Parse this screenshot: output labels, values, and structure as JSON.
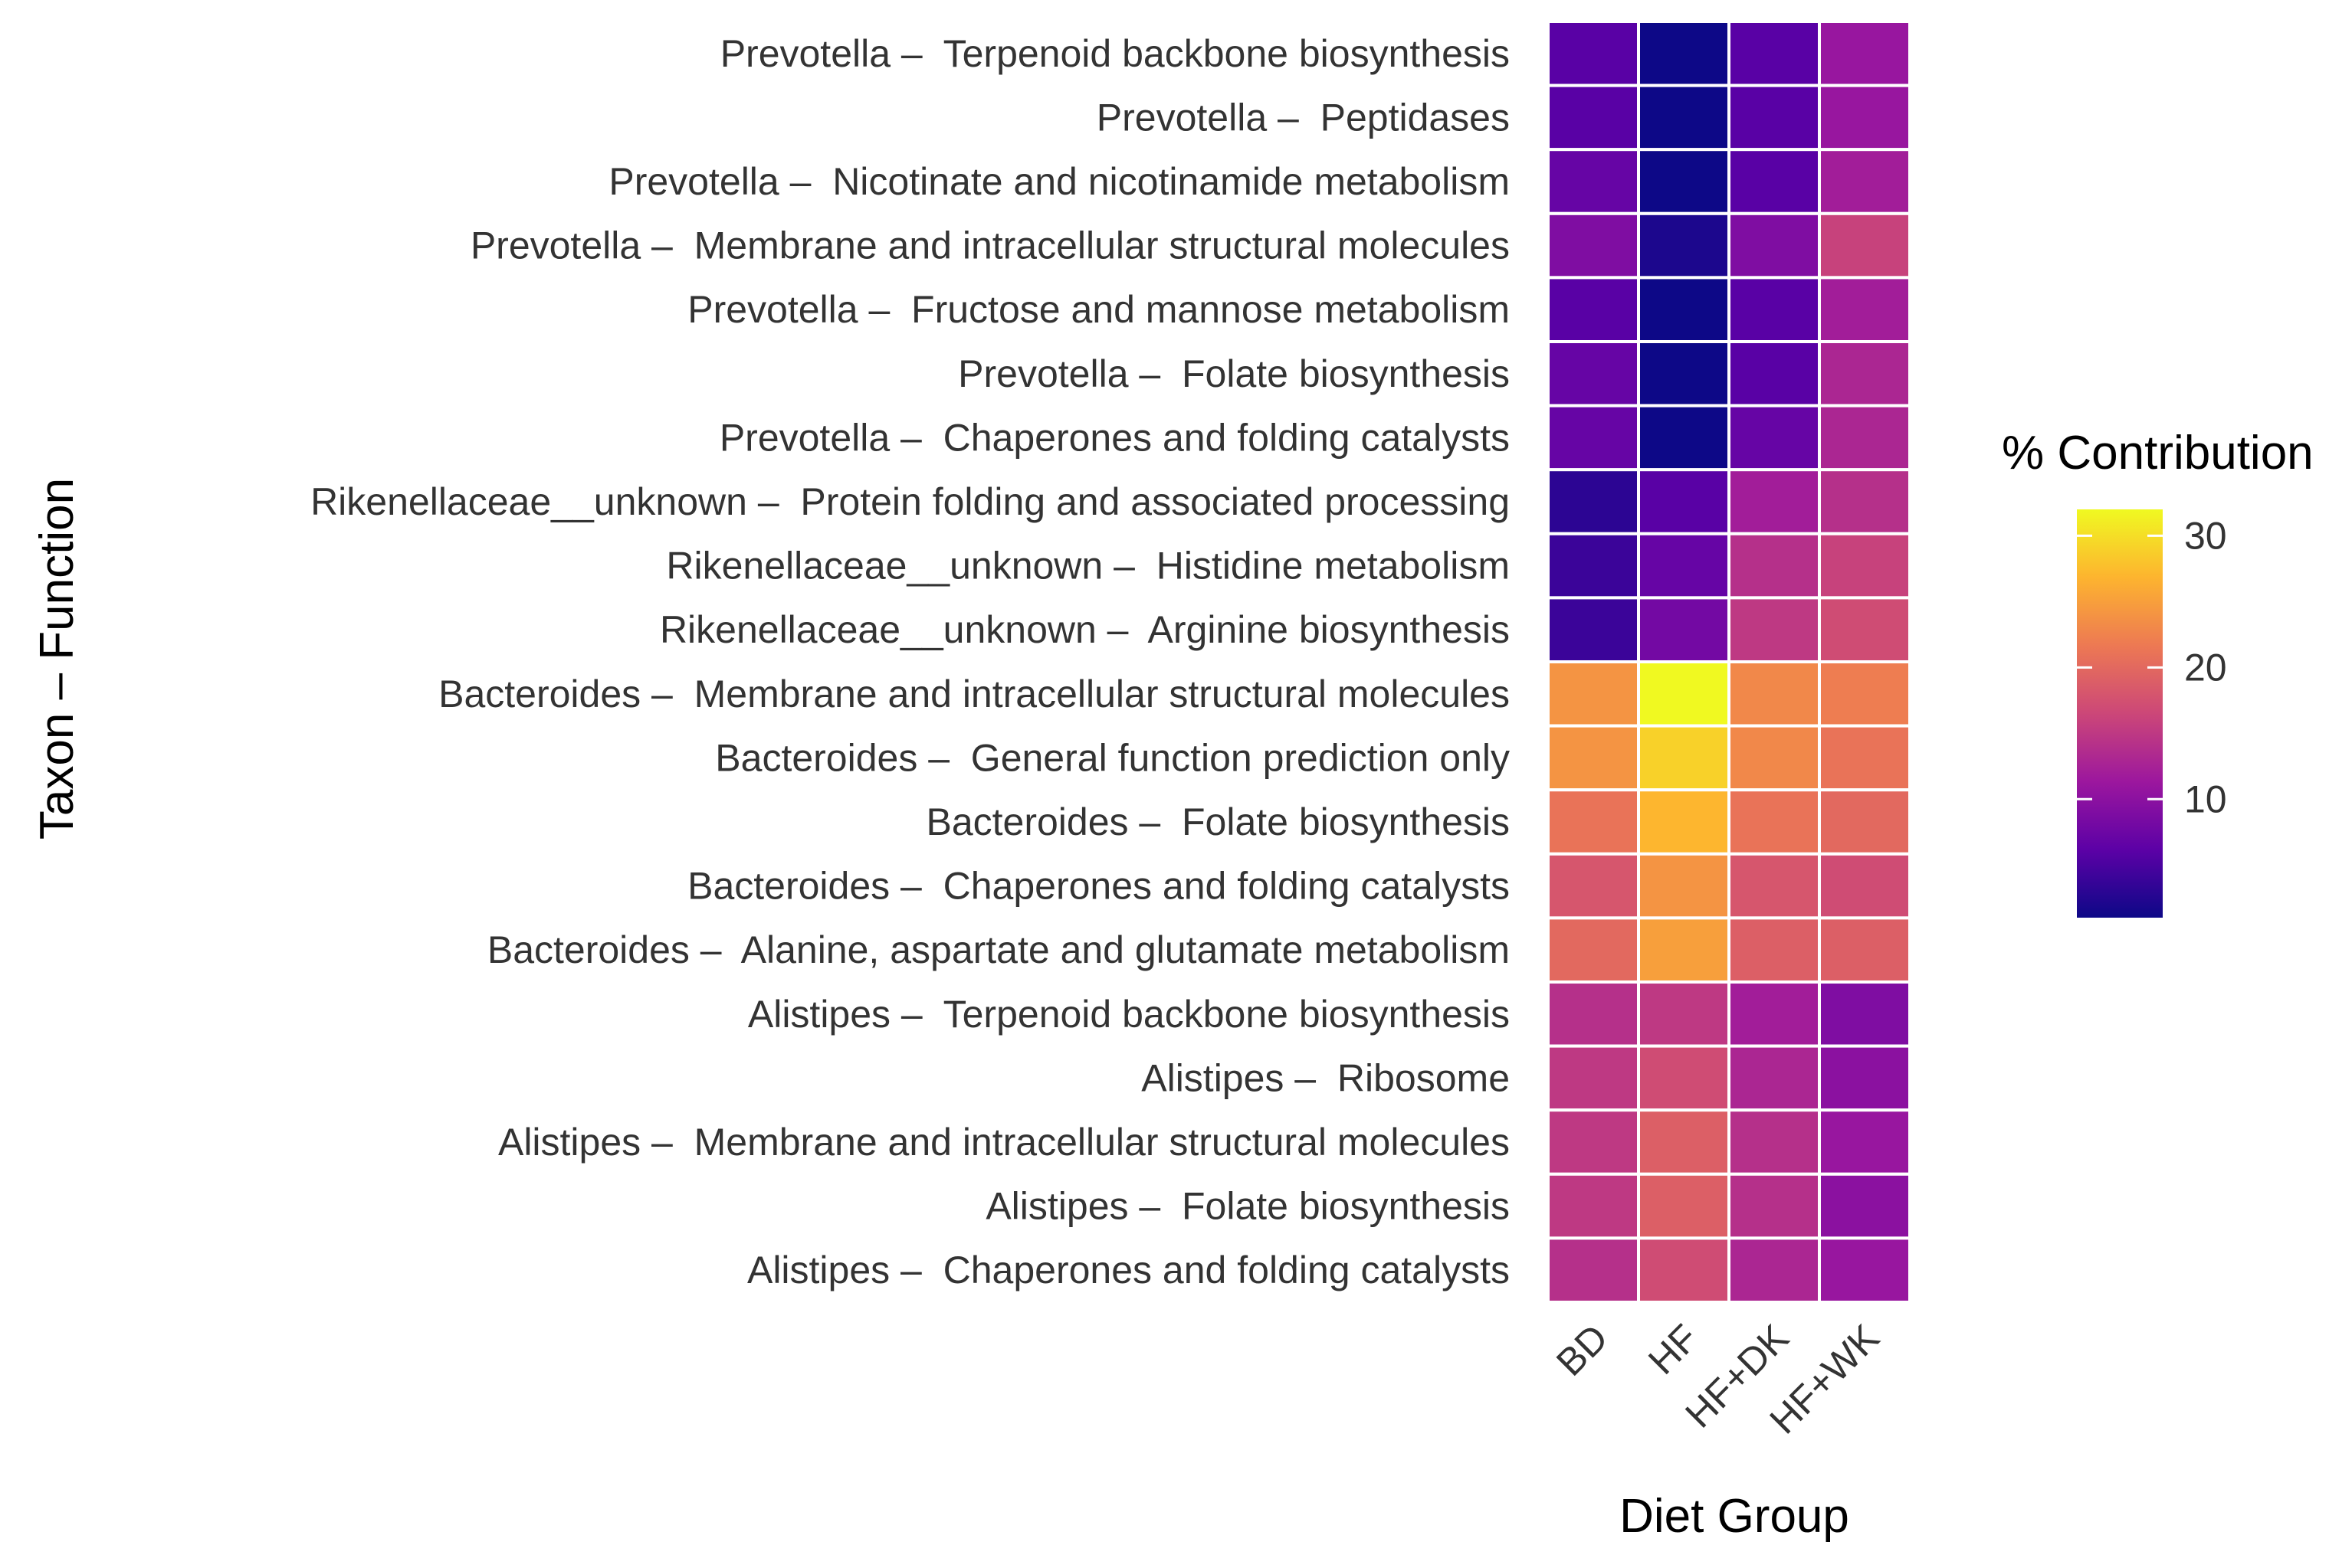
{
  "chart_data": {
    "type": "heatmap",
    "title": "",
    "xlabel": "Diet Group",
    "ylabel": "Taxon – Function",
    "x_categories": [
      "BD",
      "HF",
      "HF+DK",
      "HF+WK"
    ],
    "y_categories": [
      "Prevotella –  Terpenoid backbone biosynthesis",
      "Prevotella –  Peptidases",
      "Prevotella –  Nicotinate and nicotinamide metabolism",
      "Prevotella –  Membrane and intracellular structural molecules",
      "Prevotella –  Fructose and mannose metabolism",
      "Prevotella –  Folate biosynthesis",
      "Prevotella –  Chaperones and folding catalysts",
      "Rikenellaceae__unknown –  Protein folding and associated processing",
      "Rikenellaceae__unknown –  Histidine metabolism",
      "Rikenellaceae__unknown –  Arginine biosynthesis",
      "Bacteroides –  Membrane and intracellular structural molecules",
      "Bacteroides –  General function prediction only",
      "Bacteroides –  Folate biosynthesis",
      "Bacteroides –  Chaperones and folding catalysts",
      "Bacteroides –  Alanine, aspartate and glutamate metabolism",
      "Alistipes –  Terpenoid backbone biosynthesis",
      "Alistipes –  Ribosome",
      "Alistipes –  Membrane and intracellular structural molecules",
      "Alistipes –  Folate biosynthesis",
      "Alistipes –  Chaperones and folding catalysts"
    ],
    "values": [
      [
        6,
        1,
        6,
        11
      ],
      [
        6,
        1,
        6,
        11
      ],
      [
        7,
        1,
        6,
        12
      ],
      [
        9,
        2,
        9,
        16
      ],
      [
        6,
        1,
        6,
        12
      ],
      [
        7,
        1,
        6,
        13
      ],
      [
        7,
        1,
        7,
        13
      ],
      [
        3,
        6,
        12,
        14
      ],
      [
        4,
        7,
        14,
        16
      ],
      [
        4,
        8,
        15,
        17
      ],
      [
        24,
        32,
        23,
        22
      ],
      [
        24,
        29,
        23,
        21
      ],
      [
        21,
        27,
        21,
        20
      ],
      [
        18,
        24,
        18,
        17
      ],
      [
        20,
        25,
        19,
        19
      ],
      [
        14,
        15,
        12,
        9
      ],
      [
        15,
        17,
        13,
        10
      ],
      [
        15,
        19,
        14,
        11
      ],
      [
        15,
        19,
        14,
        10
      ],
      [
        14,
        17,
        13,
        11
      ]
    ],
    "legend": {
      "title": "% Contribution",
      "ticks": [
        10,
        20,
        30
      ],
      "range": [
        1,
        32
      ],
      "position": "right"
    },
    "colors": {
      "scale": [
        "#0d0887",
        "#5c01a6",
        "#9c179e",
        "#cc4778",
        "#ed7953",
        "#fdb42f",
        "#f0f921"
      ],
      "grid": "#ffffff"
    }
  }
}
